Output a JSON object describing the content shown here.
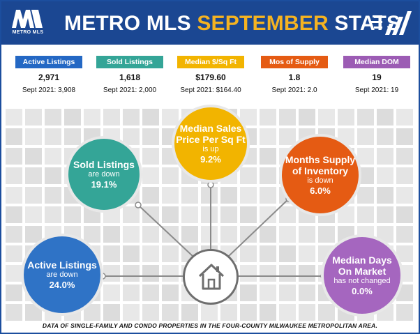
{
  "header": {
    "logo_text": "METRO MLS",
    "title_part1": "METRO MLS ",
    "title_accent": "SEPTEMBER",
    "title_part2": " STATS"
  },
  "stats": [
    {
      "label": "Active Listings",
      "value": "2,971",
      "prev": "Sept 2021: 3,908",
      "color": "#2468c4"
    },
    {
      "label": "Sold Listings",
      "value": "1,618",
      "prev": "Sept 2021: 2,000",
      "color": "#34a597"
    },
    {
      "label": "Median $/Sq Ft",
      "value": "$179.60",
      "prev": "Sept 2021: $164.40",
      "color": "#f2b400"
    },
    {
      "label": "Mos of Supply",
      "value": "1.8",
      "prev": "Sept 2021: 2.0",
      "color": "#e55b13"
    },
    {
      "label": "Median DOM",
      "value": "19",
      "prev": "Sept 2021: 19",
      "color": "#9c5cb4"
    }
  ],
  "circles": {
    "active": {
      "title1": "Active Listings",
      "title2": "",
      "direction": "are down",
      "pct": "24.0%",
      "color": "#2f73c6"
    },
    "sold": {
      "title1": "Sold Listings",
      "title2": "",
      "direction": "are down",
      "pct": "19.1%",
      "color": "#34a597"
    },
    "price": {
      "title1": "Median Sales",
      "title2": "Price Per Sq Ft",
      "direction": "is up",
      "pct": "9.2%",
      "color": "#f2b400"
    },
    "supply": {
      "title1": "Months Supply",
      "title2": "of Inventory",
      "direction": "is down",
      "pct": "6.0%",
      "color": "#e55b13"
    },
    "dom": {
      "title1": "Median Days",
      "title2": "On Market",
      "direction": "has not changed",
      "pct": "0.0%",
      "color": "#a566bf"
    }
  },
  "center_icon": "house-icon",
  "footer": "DATA OF SINGLE-FAMILY AND CONDO PROPERTIES IN THE FOUR-COUNTY MILWAUKEE METROPOLITAN AREA."
}
